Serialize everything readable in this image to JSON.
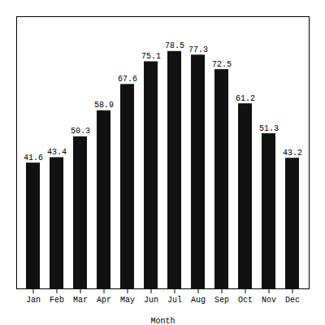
{
  "chart_data": {
    "type": "bar",
    "categories": [
      "Jan",
      "Feb",
      "Mar",
      "Apr",
      "May",
      "Jun",
      "Jul",
      "Aug",
      "Sep",
      "Oct",
      "Nov",
      "Dec"
    ],
    "values": [
      41.6,
      43.4,
      50.3,
      58.9,
      67.6,
      75.1,
      78.5,
      77.3,
      72.5,
      61.2,
      51.3,
      43.2
    ],
    "color": "#111111",
    "xlabel": "Month",
    "ylim": [
      0,
      90
    ],
    "data_labels": true,
    "tick_labels": "x",
    "grid": false
  }
}
